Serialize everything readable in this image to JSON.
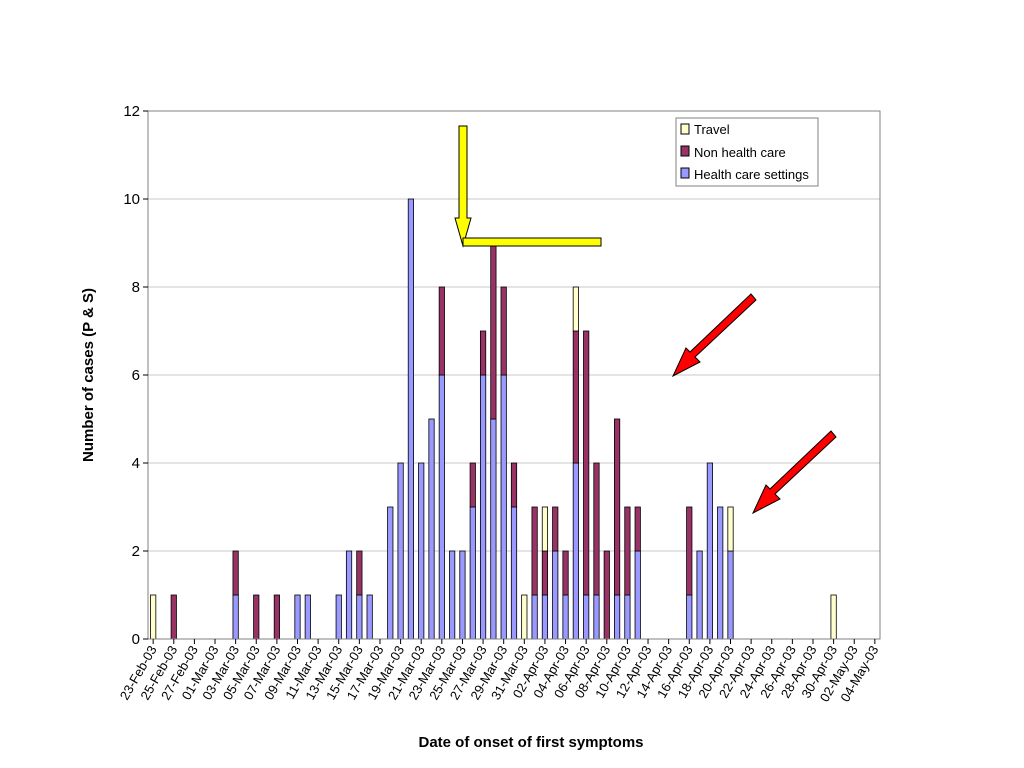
{
  "chart_data": {
    "type": "bar",
    "stacked": true,
    "xlabel": "Date of onset of first symptoms",
    "ylabel": "Number of cases (P & S)",
    "ylim": [
      0,
      12
    ],
    "yticks": [
      0,
      2,
      4,
      6,
      8,
      10,
      12
    ],
    "grid": true,
    "legend_position": "top-right",
    "tick_labels": [
      "23-Feb-03",
      "25-Feb-03",
      "27-Feb-03",
      "01-Mar-03",
      "03-Mar-03",
      "05-Mar-03",
      "07-Mar-03",
      "09-Mar-03",
      "11-Mar-03",
      "13-Mar-03",
      "15-Mar-03",
      "17-Mar-03",
      "19-Mar-03",
      "21-Mar-03",
      "23-Mar-03",
      "25-Mar-03",
      "27-Mar-03",
      "29-Mar-03",
      "31-Mar-03",
      "02-Apr-03",
      "04-Apr-03",
      "06-Apr-03",
      "08-Apr-03",
      "10-Apr-03",
      "12-Apr-03",
      "14-Apr-03",
      "16-Apr-03",
      "18-Apr-03",
      "20-Apr-03",
      "22-Apr-03",
      "24-Apr-03",
      "26-Apr-03",
      "28-Apr-03",
      "30-Apr-03",
      "02-May-03",
      "04-May-03"
    ],
    "x": [
      "23-Feb-03",
      "24-Feb-03",
      "25-Feb-03",
      "26-Feb-03",
      "27-Feb-03",
      "28-Feb-03",
      "01-Mar-03",
      "02-Mar-03",
      "03-Mar-03",
      "04-Mar-03",
      "05-Mar-03",
      "06-Mar-03",
      "07-Mar-03",
      "08-Mar-03",
      "09-Mar-03",
      "10-Mar-03",
      "11-Mar-03",
      "12-Mar-03",
      "13-Mar-03",
      "14-Mar-03",
      "15-Mar-03",
      "16-Mar-03",
      "17-Mar-03",
      "18-Mar-03",
      "19-Mar-03",
      "20-Mar-03",
      "21-Mar-03",
      "22-Mar-03",
      "23-Mar-03",
      "24-Mar-03",
      "25-Mar-03",
      "26-Mar-03",
      "27-Mar-03",
      "28-Mar-03",
      "29-Mar-03",
      "30-Mar-03",
      "31-Mar-03",
      "01-Apr-03",
      "02-Apr-03",
      "03-Apr-03",
      "04-Apr-03",
      "05-Apr-03",
      "06-Apr-03",
      "07-Apr-03",
      "08-Apr-03",
      "09-Apr-03",
      "10-Apr-03",
      "11-Apr-03",
      "12-Apr-03",
      "13-Apr-03",
      "14-Apr-03",
      "15-Apr-03",
      "16-Apr-03",
      "17-Apr-03",
      "18-Apr-03",
      "19-Apr-03",
      "20-Apr-03",
      "21-Apr-03",
      "22-Apr-03",
      "23-Apr-03",
      "24-Apr-03",
      "25-Apr-03",
      "26-Apr-03",
      "27-Apr-03",
      "28-Apr-03",
      "29-Apr-03",
      "30-Apr-03",
      "01-May-03",
      "02-May-03",
      "03-May-03",
      "04-May-03"
    ],
    "series": [
      {
        "name": "Health care settings",
        "color": "#9999ff",
        "values": [
          0,
          0,
          0,
          0,
          0,
          0,
          0,
          0,
          1,
          0,
          0,
          0,
          0,
          0,
          1,
          1,
          0,
          0,
          1,
          2,
          1,
          1,
          0,
          3,
          4,
          10,
          4,
          5,
          6,
          2,
          2,
          3,
          6,
          5,
          6,
          3,
          0,
          1,
          1,
          2,
          1,
          4,
          1,
          1,
          0,
          1,
          1,
          2,
          0,
          0,
          0,
          0,
          1,
          2,
          4,
          3,
          2,
          0,
          0,
          0,
          0,
          0,
          0,
          0,
          0,
          0,
          0,
          0,
          0,
          0,
          0
        ]
      },
      {
        "name": "Non health care",
        "color": "#993366",
        "values": [
          0,
          0,
          1,
          0,
          0,
          0,
          0,
          0,
          1,
          0,
          1,
          0,
          1,
          0,
          0,
          0,
          0,
          0,
          0,
          0,
          1,
          0,
          0,
          0,
          0,
          0,
          0,
          0,
          2,
          0,
          0,
          1,
          1,
          4,
          2,
          1,
          0,
          2,
          1,
          1,
          1,
          3,
          6,
          3,
          2,
          4,
          2,
          1,
          0,
          0,
          0,
          0,
          2,
          0,
          0,
          0,
          0,
          0,
          0,
          0,
          0,
          0,
          0,
          0,
          0,
          0,
          0,
          0,
          0,
          0,
          0
        ]
      },
      {
        "name": "Travel",
        "color": "#ffffcc",
        "values": [
          1,
          0,
          0,
          0,
          0,
          0,
          0,
          0,
          0,
          0,
          0,
          0,
          0,
          0,
          0,
          0,
          0,
          0,
          0,
          0,
          0,
          0,
          0,
          0,
          0,
          0,
          0,
          0,
          0,
          0,
          0,
          0,
          0,
          0,
          0,
          0,
          1,
          0,
          1,
          0,
          0,
          1,
          0,
          0,
          0,
          0,
          0,
          0,
          0,
          0,
          0,
          0,
          0,
          0,
          0,
          0,
          1,
          0,
          0,
          0,
          0,
          0,
          0,
          0,
          0,
          0,
          1,
          0,
          0,
          0,
          0
        ]
      }
    ],
    "annotations": [
      {
        "shape": "arrow-down-then-right",
        "color": "#ffff00",
        "points_at": "27-Mar-03"
      },
      {
        "shape": "arrow",
        "color": "#ff0000",
        "points_at": "15-Apr-03"
      },
      {
        "shape": "arrow",
        "color": "#ff0000",
        "points_at": "20-Apr-03"
      }
    ]
  }
}
